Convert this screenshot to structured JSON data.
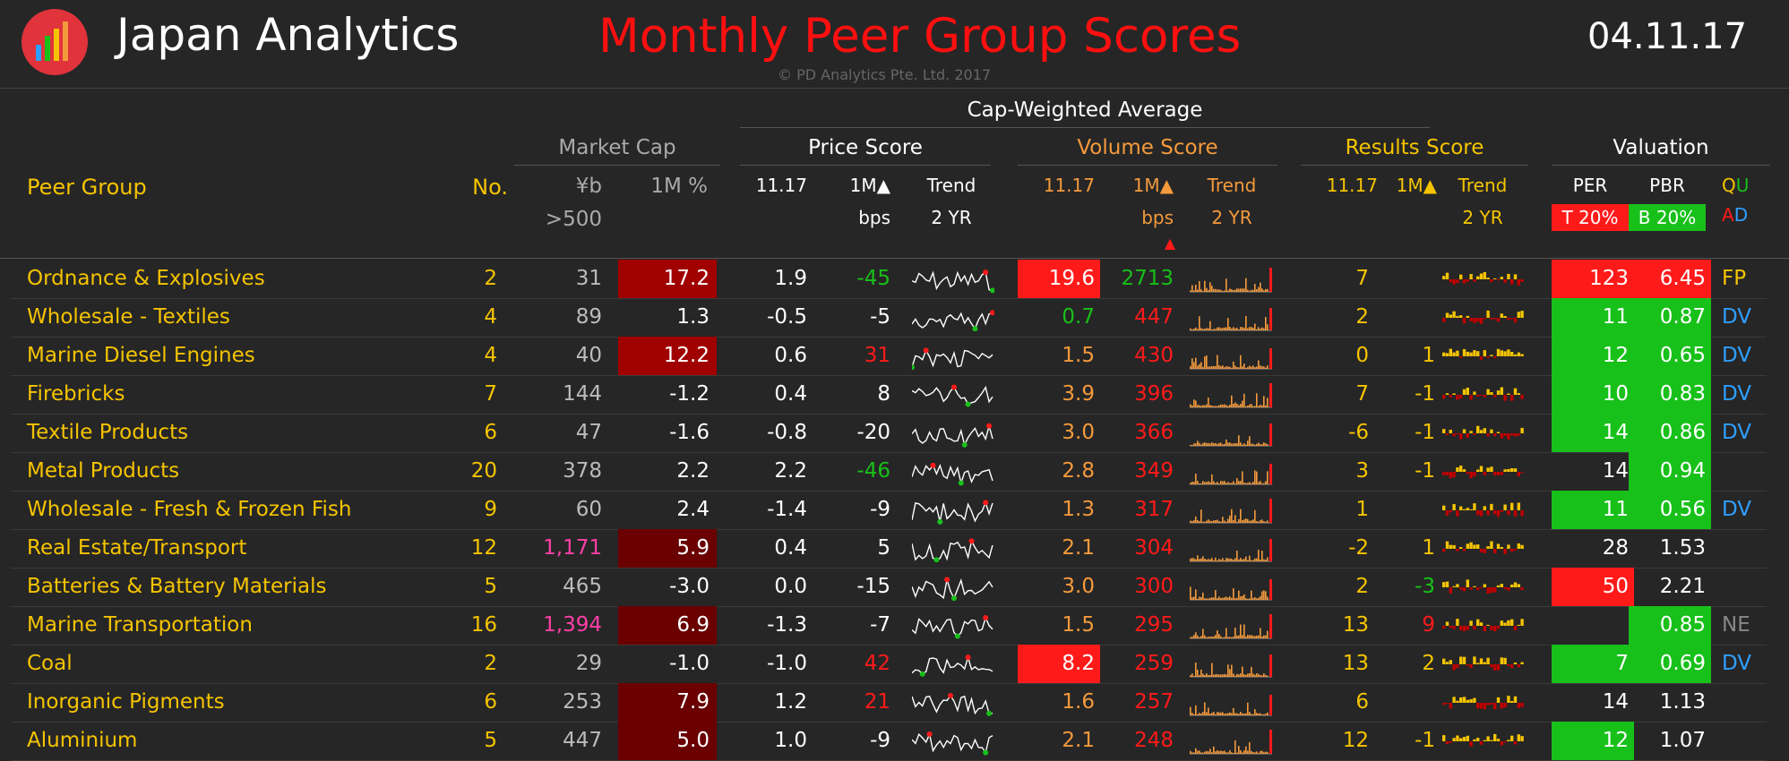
{
  "header": {
    "app_title": "Japan Analytics",
    "main_title": "Monthly Peer Group Scores",
    "copyright": "© PD Analytics Pte. Ltd. 2017",
    "date": "04.11.17"
  },
  "colors": {
    "yellow": "#f5c400",
    "orange": "#f49a3c",
    "red": "#ff1a1a",
    "green": "#18c01a",
    "blue": "#2e9fff",
    "pink": "#ff3fa7",
    "dark_red": "#a00000"
  },
  "groups": {
    "cap_weighted": "Cap-Weighted Average",
    "market_cap": "Market Cap",
    "price_score": "Price Score",
    "volume_score": "Volume Score",
    "results_score": "Results Score",
    "valuation": "Valuation"
  },
  "columns": {
    "peer_group": "Peer Group",
    "no": "No.",
    "yen_b": "¥b",
    "gt500": ">500",
    "m1_pct": "1M %",
    "p_1117": "11.17",
    "p_1m": "1M▲",
    "p_bps": "bps",
    "p_trend": "Trend",
    "p_2yr": "2 YR",
    "v_1117": "11.17",
    "v_1m": "1M▲",
    "v_bps": "bps",
    "v_trend": "Trend",
    "v_2yr": "2 YR",
    "v_marker": "▲",
    "r_1117": "11.17",
    "r_1m": "1M▲",
    "r_trend": "Trend",
    "r_2yr": "2 YR",
    "per": "PER",
    "pbr": "PBR",
    "per_sub": "T 20%",
    "pbr_sub": "B 20%",
    "qu_q": "Q",
    "qu_u": "U",
    "ad_a": "A",
    "ad_d": "D"
  },
  "rows": [
    {
      "name": "Ordnance & Explosives",
      "no": "2",
      "cap": "31",
      "m1": "17.2",
      "ps": "1.9",
      "pbps": "-45",
      "vs": "19.6",
      "vbps": "2713",
      "rs": "7",
      "r1m": "",
      "per": "123",
      "pbr": "6.45",
      "flag": "FP"
    },
    {
      "name": "Wholesale - Textiles",
      "no": "4",
      "cap": "89",
      "m1": "1.3",
      "ps": "-0.5",
      "pbps": "-5",
      "vs": "0.7",
      "vbps": "447",
      "rs": "2",
      "r1m": "",
      "per": "11",
      "pbr": "0.87",
      "flag": "DV"
    },
    {
      "name": "Marine Diesel Engines",
      "no": "4",
      "cap": "40",
      "m1": "12.2",
      "ps": "0.6",
      "pbps": "31",
      "vs": "1.5",
      "vbps": "430",
      "rs": "0",
      "r1m": "1",
      "per": "12",
      "pbr": "0.65",
      "flag": "DV"
    },
    {
      "name": "Firebricks",
      "no": "7",
      "cap": "144",
      "m1": "-1.2",
      "ps": "0.4",
      "pbps": "8",
      "vs": "3.9",
      "vbps": "396",
      "rs": "7",
      "r1m": "-1",
      "per": "10",
      "pbr": "0.83",
      "flag": "DV"
    },
    {
      "name": "Textile Products",
      "no": "6",
      "cap": "47",
      "m1": "-1.6",
      "ps": "-0.8",
      "pbps": "-20",
      "vs": "3.0",
      "vbps": "366",
      "rs": "-6",
      "r1m": "-1",
      "per": "14",
      "pbr": "0.86",
      "flag": "DV"
    },
    {
      "name": "Metal Products",
      "no": "20",
      "cap": "378",
      "m1": "2.2",
      "ps": "2.2",
      "pbps": "-46",
      "vs": "2.8",
      "vbps": "349",
      "rs": "3",
      "r1m": "-1",
      "per": "14",
      "pbr": "0.94",
      "flag": ""
    },
    {
      "name": "Wholesale - Fresh & Frozen Fish",
      "no": "9",
      "cap": "60",
      "m1": "2.4",
      "ps": "-1.4",
      "pbps": "-9",
      "vs": "1.3",
      "vbps": "317",
      "rs": "1",
      "r1m": "",
      "per": "11",
      "pbr": "0.56",
      "flag": "DV"
    },
    {
      "name": "Real Estate/Transport",
      "no": "12",
      "cap": "1,171",
      "m1": "5.9",
      "ps": "0.4",
      "pbps": "5",
      "vs": "2.1",
      "vbps": "304",
      "rs": "-2",
      "r1m": "1",
      "per": "28",
      "pbr": "1.53",
      "flag": ""
    },
    {
      "name": "Batteries & Battery Materials",
      "no": "5",
      "cap": "465",
      "m1": "-3.0",
      "ps": "0.0",
      "pbps": "-15",
      "vs": "3.0",
      "vbps": "300",
      "rs": "2",
      "r1m": "-3",
      "per": "50",
      "pbr": "2.21",
      "flag": ""
    },
    {
      "name": "Marine Transportation",
      "no": "16",
      "cap": "1,394",
      "m1": "6.9",
      "ps": "-1.3",
      "pbps": "-7",
      "vs": "1.5",
      "vbps": "295",
      "rs": "13",
      "r1m": "9",
      "per": "",
      "pbr": "0.85",
      "flag": "NE"
    },
    {
      "name": "Coal",
      "no": "2",
      "cap": "29",
      "m1": "-1.0",
      "ps": "-1.0",
      "pbps": "42",
      "vs": "8.2",
      "vbps": "259",
      "rs": "13",
      "r1m": "2",
      "per": "7",
      "pbr": "0.69",
      "flag": "DV"
    },
    {
      "name": "Inorganic Pigments",
      "no": "6",
      "cap": "253",
      "m1": "7.9",
      "ps": "1.2",
      "pbps": "21",
      "vs": "1.6",
      "vbps": "257",
      "rs": "6",
      "r1m": "",
      "per": "14",
      "pbr": "1.13",
      "flag": ""
    },
    {
      "name": "Aluminium",
      "no": "5",
      "cap": "447",
      "m1": "5.0",
      "ps": "1.0",
      "pbps": "-9",
      "vs": "2.1",
      "vbps": "248",
      "rs": "12",
      "r1m": "-1",
      "per": "12",
      "pbr": "1.07",
      "flag": ""
    }
  ]
}
